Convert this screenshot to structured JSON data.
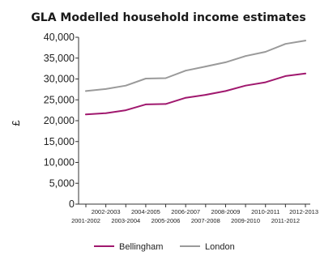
{
  "chart_data": {
    "type": "line",
    "title": "GLA Modelled household income estimates",
    "xlabel": "",
    "ylabel": "£",
    "ylim": [
      0,
      40000
    ],
    "yticks": [
      0,
      5000,
      10000,
      15000,
      20000,
      25000,
      30000,
      35000,
      40000
    ],
    "ytick_labels": [
      "0",
      "5,000",
      "10,000",
      "15,000",
      "20,000",
      "25,000",
      "30,000",
      "35,000",
      "40,000"
    ],
    "categories": [
      "2001-2002",
      "2002-2003",
      "2003-2004",
      "2004-2005",
      "2005-2006",
      "2006-2007",
      "2007-2008",
      "2008-2009",
      "2009-2010",
      "2010-2011",
      "2011-2012",
      "2012-2013"
    ],
    "series": [
      {
        "name": "Bellingham",
        "color": "#a0186e",
        "values": [
          21500,
          21800,
          22500,
          23900,
          24000,
          25500,
          26200,
          27100,
          28400,
          29200,
          30700,
          31300
        ]
      },
      {
        "name": "London",
        "color": "#9a9a9a",
        "values": [
          27100,
          27600,
          28400,
          30100,
          30200,
          32000,
          33000,
          34000,
          35500,
          36500,
          38400,
          39200
        ]
      }
    ],
    "grid": false,
    "legend_position": "bottom"
  }
}
